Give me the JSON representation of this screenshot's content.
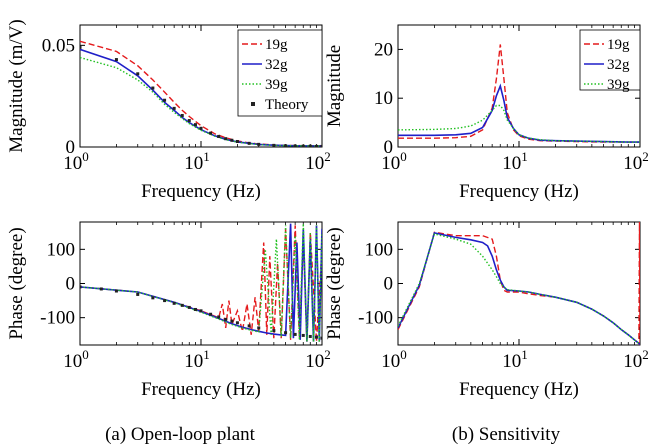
{
  "chart_data": [
    {
      "id": "a-mag",
      "type": "line",
      "xscale": "log",
      "xlim": [
        1,
        100
      ],
      "ylim": [
        0,
        0.06
      ],
      "xlabel": "Frequency (Hz)",
      "ylabel": "Magnitude (m/V)",
      "xticks": [
        {
          "base": "10",
          "exp": "0"
        },
        {
          "base": "10",
          "exp": "1"
        },
        {
          "base": "10",
          "exp": "2"
        }
      ],
      "yticks": [
        {
          "v": 0,
          "label": "0"
        },
        {
          "v": 0.05,
          "label": "0.05"
        }
      ],
      "legend": {
        "position": "top-right",
        "entries": [
          "19g",
          "32g",
          "39g",
          "Theory"
        ]
      },
      "series": [
        {
          "name": "19g",
          "color": "#e41a1c",
          "style": "dashed",
          "x": [
            1,
            2,
            3,
            4,
            5,
            6,
            7,
            8,
            10,
            13,
            16,
            20,
            25,
            30,
            40,
            60,
            100
          ],
          "y": [
            0.052,
            0.047,
            0.04,
            0.033,
            0.027,
            0.022,
            0.018,
            0.015,
            0.0105,
            0.0065,
            0.0045,
            0.003,
            0.002,
            0.0015,
            0.001,
            0.0007,
            0.0006
          ]
        },
        {
          "name": "32g",
          "color": "#1f1fc8",
          "style": "solid",
          "x": [
            1,
            2,
            3,
            4,
            5,
            6,
            7,
            8,
            10,
            13,
            16,
            20,
            25,
            30,
            40,
            60,
            100
          ],
          "y": [
            0.048,
            0.042,
            0.035,
            0.028,
            0.022,
            0.018,
            0.0145,
            0.012,
            0.0085,
            0.0055,
            0.0038,
            0.0025,
            0.0018,
            0.0013,
            0.0009,
            0.0006,
            0.0005
          ]
        },
        {
          "name": "39g",
          "color": "#22c022",
          "style": "dotted",
          "x": [
            1,
            2,
            3,
            4,
            5,
            6,
            7,
            8,
            10,
            13,
            16,
            20,
            25,
            30,
            40,
            60,
            100
          ],
          "y": [
            0.044,
            0.039,
            0.033,
            0.027,
            0.021,
            0.017,
            0.014,
            0.0115,
            0.0082,
            0.0053,
            0.0036,
            0.0024,
            0.0017,
            0.0012,
            0.0008,
            0.0006,
            0.0005
          ]
        },
        {
          "name": "Theory",
          "color": "#222222",
          "style": "markers",
          "x": [
            1,
            2,
            3,
            4,
            5,
            6,
            7,
            8,
            9,
            10,
            12,
            14,
            16,
            18,
            20,
            25,
            30,
            40,
            50,
            60,
            70,
            80,
            90,
            100
          ],
          "y": [
            0.049,
            0.043,
            0.036,
            0.029,
            0.023,
            0.019,
            0.0155,
            0.013,
            0.011,
            0.0092,
            0.0068,
            0.0052,
            0.0041,
            0.0033,
            0.0027,
            0.0018,
            0.0013,
            0.0008,
            0.0006,
            0.0005,
            0.0004,
            0.0004,
            0.0003,
            0.0003
          ]
        }
      ]
    },
    {
      "id": "b-mag",
      "type": "line",
      "xscale": "log",
      "xlim": [
        1,
        100
      ],
      "ylim": [
        0,
        25
      ],
      "xlabel": "Frequency (Hz)",
      "ylabel": "Magnitude",
      "xticks": [
        {
          "base": "10",
          "exp": "0"
        },
        {
          "base": "10",
          "exp": "1"
        },
        {
          "base": "10",
          "exp": "2"
        }
      ],
      "yticks": [
        {
          "v": 0,
          "label": "0"
        },
        {
          "v": 10,
          "label": "10"
        },
        {
          "v": 20,
          "label": "20"
        }
      ],
      "legend": {
        "position": "top-right",
        "entries": [
          "19g",
          "32g",
          "39g"
        ]
      },
      "series": [
        {
          "name": "19g",
          "color": "#e41a1c",
          "style": "dashed",
          "x": [
            1,
            2,
            3,
            4,
            5,
            6,
            6.5,
            7,
            7.5,
            8,
            9,
            10,
            12,
            15,
            20,
            30,
            50,
            80,
            100
          ],
          "y": [
            1.8,
            1.8,
            1.9,
            2.2,
            3.5,
            8,
            14,
            21,
            14,
            7,
            3.5,
            2.3,
            1.6,
            1.3,
            1.2,
            1.1,
            1.0,
            1.0,
            1.0
          ]
        },
        {
          "name": "32g",
          "color": "#1f1fc8",
          "style": "solid",
          "x": [
            1,
            2,
            3,
            4,
            5,
            6,
            6.5,
            7,
            7.5,
            8,
            9,
            10,
            12,
            15,
            20,
            30,
            50,
            80,
            100
          ],
          "y": [
            2.4,
            2.4,
            2.5,
            2.8,
            4,
            7.5,
            10.5,
            12.5,
            9.5,
            6,
            3.8,
            2.5,
            1.8,
            1.4,
            1.3,
            1.2,
            1.1,
            1.0,
            1.0
          ]
        },
        {
          "name": "39g",
          "color": "#22c022",
          "style": "dotted",
          "x": [
            1,
            2,
            3,
            4,
            5,
            6,
            6.5,
            7,
            7.5,
            8,
            9,
            10,
            12,
            15,
            20,
            30,
            50,
            80,
            100
          ],
          "y": [
            3.5,
            3.6,
            3.8,
            4.3,
            5.5,
            7.5,
            8.5,
            8.5,
            7.5,
            5.5,
            3.8,
            2.5,
            1.8,
            1.5,
            1.3,
            1.2,
            1.1,
            1.0,
            1.0
          ]
        }
      ]
    },
    {
      "id": "a-phase",
      "type": "line",
      "xscale": "log",
      "xlim": [
        1,
        100
      ],
      "ylim": [
        -180,
        180
      ],
      "xlabel": "Frequency (Hz)",
      "ylabel": "Phase (degree)",
      "xticks": [
        {
          "base": "10",
          "exp": "0"
        },
        {
          "base": "10",
          "exp": "1"
        },
        {
          "base": "10",
          "exp": "2"
        }
      ],
      "yticks": [
        {
          "v": -100,
          "label": "-100"
        },
        {
          "v": 0,
          "label": "0"
        },
        {
          "v": 100,
          "label": "100"
        }
      ],
      "series": [
        {
          "name": "19g",
          "color": "#e41a1c",
          "style": "dashed",
          "x": [
            1,
            3,
            6,
            10,
            14,
            15,
            16,
            17,
            18,
            20,
            22,
            24,
            26,
            28,
            30,
            33,
            35,
            37,
            40,
            43,
            46,
            50,
            55,
            60,
            65,
            70,
            75,
            80,
            90,
            100
          ],
          "y": [
            -10,
            -25,
            -55,
            -80,
            -100,
            -60,
            -130,
            -50,
            -120,
            -80,
            -140,
            -60,
            -150,
            -40,
            -140,
            120,
            -150,
            80,
            -160,
            60,
            -160,
            160,
            -165,
            170,
            -160,
            120,
            -170,
            150,
            -170,
            100
          ]
        },
        {
          "name": "32g",
          "color": "#1f1fc8",
          "style": "solid",
          "x": [
            1,
            3,
            6,
            10,
            14,
            18,
            22,
            26,
            30,
            35,
            40,
            45,
            50,
            55,
            58,
            62,
            66,
            70,
            75,
            80,
            85,
            90,
            95,
            100
          ],
          "y": [
            -10,
            -25,
            -55,
            -82,
            -102,
            -118,
            -128,
            -135,
            -140,
            -145,
            -148,
            -150,
            -152,
            175,
            -160,
            120,
            -165,
            160,
            -170,
            130,
            -170,
            170,
            -170,
            160
          ]
        },
        {
          "name": "39g",
          "color": "#22c022",
          "style": "dotted",
          "x": [
            1,
            3,
            6,
            10,
            14,
            18,
            22,
            26,
            30,
            34,
            38,
            42,
            46,
            50,
            55,
            60,
            65,
            70,
            75,
            80,
            85,
            90,
            95,
            100
          ],
          "y": [
            -10,
            -25,
            -56,
            -84,
            -104,
            -120,
            -130,
            -137,
            -142,
            100,
            -150,
            130,
            -155,
            170,
            -160,
            140,
            -165,
            175,
            -170,
            150,
            -170,
            170,
            -172,
            150
          ]
        },
        {
          "name": "Theory",
          "color": "#222222",
          "style": "markers",
          "x": [
            1,
            1.5,
            2,
            3,
            4,
            5,
            6,
            7,
            8,
            9,
            10,
            12,
            14,
            16,
            18,
            20,
            25,
            30,
            40,
            50,
            60,
            70,
            80,
            90,
            100
          ],
          "y": [
            -10,
            -16,
            -22,
            -32,
            -42,
            -50,
            -58,
            -64,
            -70,
            -76,
            -80,
            -90,
            -98,
            -105,
            -110,
            -115,
            -124,
            -130,
            -138,
            -144,
            -149,
            -152,
            -155,
            -157,
            -160
          ]
        }
      ]
    },
    {
      "id": "b-phase",
      "type": "line",
      "xscale": "log",
      "xlim": [
        1,
        100
      ],
      "ylim": [
        -180,
        180
      ],
      "xlabel": "Frequency (Hz)",
      "ylabel": "Phase (degree)",
      "xticks": [
        {
          "base": "10",
          "exp": "0"
        },
        {
          "base": "10",
          "exp": "1"
        },
        {
          "base": "10",
          "exp": "2"
        }
      ],
      "yticks": [
        {
          "v": -100,
          "label": "-100"
        },
        {
          "v": 0,
          "label": "0"
        },
        {
          "v": 100,
          "label": "100"
        }
      ],
      "series": [
        {
          "name": "19g",
          "color": "#e41a1c",
          "style": "dashed",
          "x": [
            1,
            1.5,
            2,
            3,
            4,
            5,
            6,
            6.5,
            7,
            7.5,
            8,
            10,
            12,
            15,
            20,
            30,
            40,
            50,
            60,
            70,
            80,
            90,
            98,
            99,
            100
          ],
          "y": [
            -135,
            -10,
            150,
            140,
            140,
            140,
            130,
            80,
            10,
            -20,
            -25,
            -25,
            -30,
            -35,
            -40,
            -55,
            -75,
            -95,
            -115,
            -135,
            -150,
            -165,
            -175,
            180,
            -180
          ]
        },
        {
          "name": "32g",
          "color": "#1f1fc8",
          "style": "solid",
          "x": [
            1,
            1.5,
            2,
            3,
            4,
            5,
            5.5,
            6,
            6.5,
            7,
            7.5,
            8,
            10,
            12,
            15,
            20,
            30,
            40,
            50,
            60,
            70,
            80,
            90,
            100
          ],
          "y": [
            -130,
            -5,
            148,
            135,
            128,
            120,
            110,
            80,
            40,
            10,
            -10,
            -20,
            -22,
            -25,
            -32,
            -40,
            -55,
            -75,
            -95,
            -115,
            -135,
            -150,
            -165,
            -178
          ]
        },
        {
          "name": "39g",
          "color": "#22c022",
          "style": "dotted",
          "x": [
            1,
            1.5,
            2,
            3,
            4,
            5,
            6,
            6.5,
            7,
            7.5,
            8,
            10,
            12,
            15,
            20,
            30,
            40,
            50,
            60,
            70,
            80,
            90,
            100
          ],
          "y": [
            -125,
            0,
            145,
            130,
            115,
            80,
            40,
            20,
            0,
            -10,
            -18,
            -22,
            -25,
            -32,
            -40,
            -55,
            -75,
            -95,
            -115,
            -135,
            -150,
            -165,
            -178
          ]
        }
      ]
    }
  ],
  "captions": {
    "left": "(a) Open-loop plant",
    "right": "(b) Sensitivity"
  }
}
